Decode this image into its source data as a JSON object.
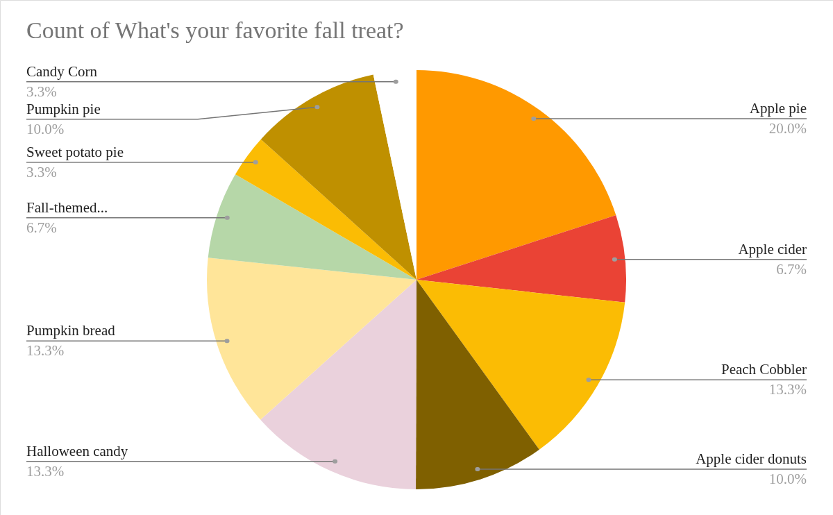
{
  "chart_data": {
    "type": "pie",
    "title": "Count of What's your favorite fall treat?",
    "categories": [
      "Apple pie",
      "Apple cider",
      "Peach Cobbler",
      "Apple cider donuts",
      "Halloween candy",
      "Pumpkin bread",
      "Fall-themed...",
      "Sweet potato pie",
      "Pumpkin pie",
      "Candy Corn"
    ],
    "values": [
      20.0,
      6.7,
      13.3,
      10.0,
      13.3,
      13.3,
      6.7,
      3.3,
      10.0,
      3.3
    ],
    "colors": [
      "#ff9900",
      "#ea4335",
      "#fbbc04",
      "#7f6000",
      "#ead1dc",
      "#ffe599",
      "#b6d7a8",
      "#fbbc04",
      "#bf9000",
      "#ffffff"
    ],
    "value_labels": [
      "20.0%",
      "6.7%",
      "13.3%",
      "10.0%",
      "13.3%",
      "13.3%",
      "6.7%",
      "3.3%",
      "10.0%",
      "3.3%"
    ]
  }
}
